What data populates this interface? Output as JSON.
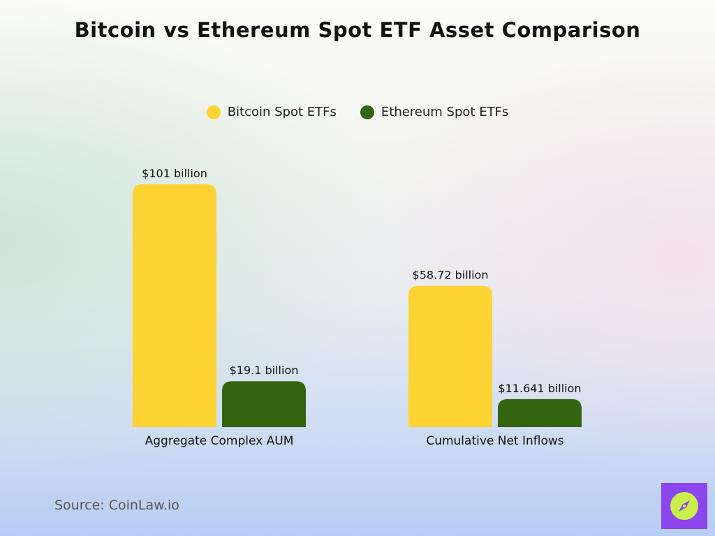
{
  "chart_data": {
    "type": "bar",
    "title": "Bitcoin vs Ethereum Spot ETF Asset Comparison",
    "categories": [
      "Aggregate Complex AUM",
      "Cumulative Net Inflows"
    ],
    "series": [
      {
        "name": "Bitcoin Spot ETFs",
        "values": [
          101,
          58.72
        ],
        "labels": [
          "$101 billion",
          "$58.72 billion"
        ],
        "color": "#fdd333"
      },
      {
        "name": "Ethereum Spot ETFs",
        "values": [
          19.1,
          11.641
        ],
        "labels": [
          "$19.1 billion",
          "$11.641 billion"
        ],
        "color": "#33640f"
      }
    ],
    "ylim": [
      0,
      101
    ],
    "grid": false,
    "legend": "top-center",
    "xlabel": "",
    "ylabel": ""
  },
  "source": "Source: CoinLaw.io",
  "logo": {
    "icon": "compass-icon",
    "color": "#8d45f0"
  }
}
